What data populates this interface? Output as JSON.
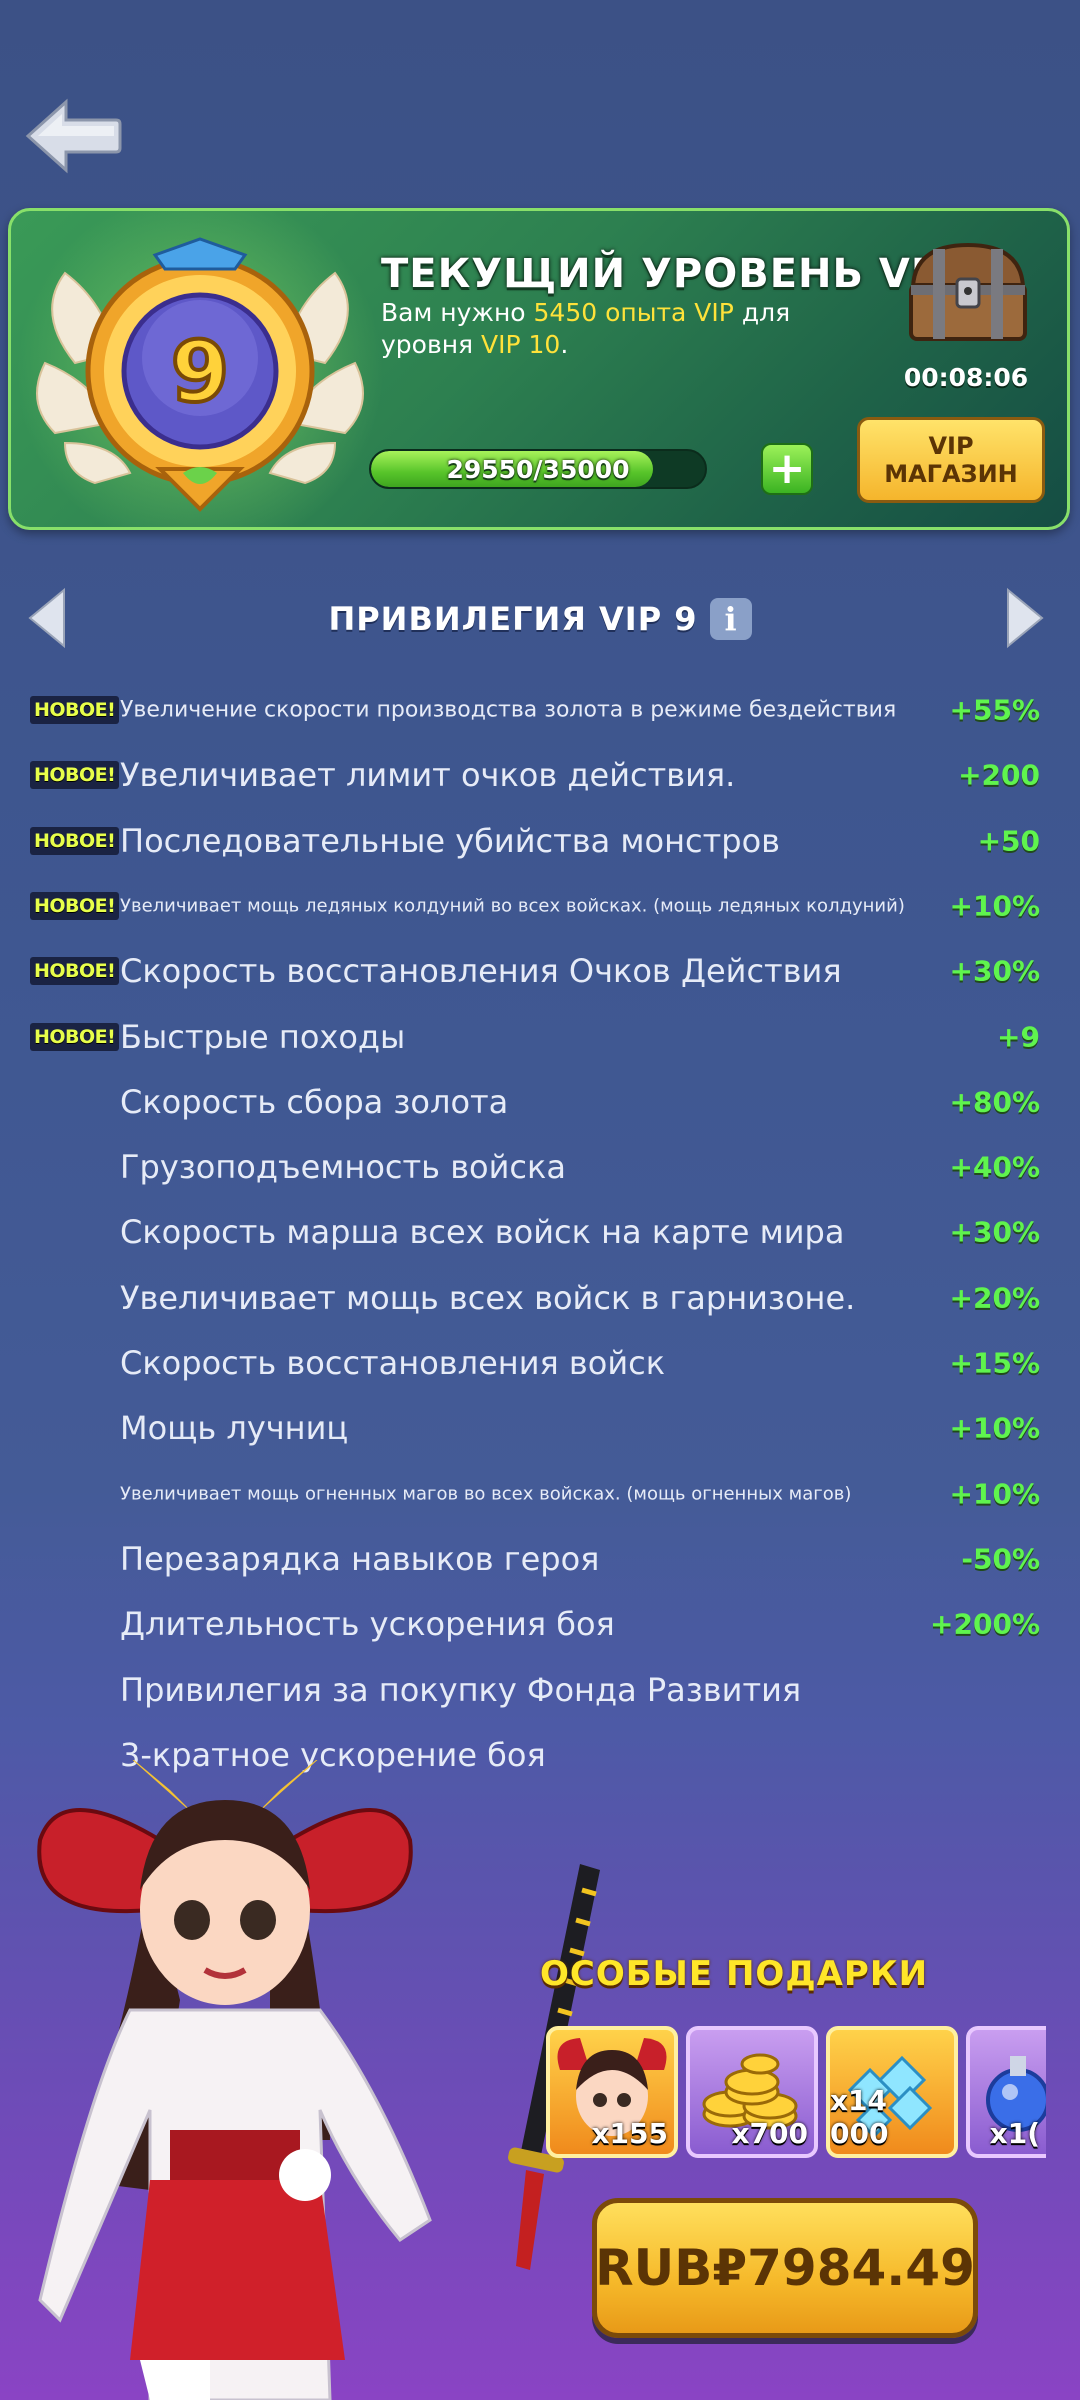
{
  "header": {
    "title_prefix": "ТЕКУЩИЙ УРОВЕНЬ VIP",
    "current_level": "9",
    "desc_part1": "Вам нужно ",
    "desc_xp": "5450 опыта VIP",
    "desc_part2": " для уровня ",
    "desc_next": "VIP 10",
    "desc_end": ".",
    "badge_level": "9",
    "xp_text": "29550/35000",
    "xp_fraction": 0.844,
    "chest_timer": "00:08:06",
    "shop_button": "VIP\nМАГАЗИН"
  },
  "privilege": {
    "title": "ПРИВИЛЕГИЯ VIP 9",
    "info_icon": "i",
    "new_badge": "НОВОЕ!",
    "items": [
      {
        "label": "Увеличение скорости производства золота в режиме бездействия",
        "value": "+55%",
        "is_new": true,
        "size": "m"
      },
      {
        "label": "Увеличивает лимит очков действия.",
        "value": "+200",
        "is_new": true,
        "size": "l"
      },
      {
        "label": "Последовательные убийства монстров",
        "value": "+50",
        "is_new": true,
        "size": "l"
      },
      {
        "label": "Увеличивает мощь ледяных колдуний во всех войсках. (мощь ледяных колдуний)",
        "value": "+10%",
        "is_new": true,
        "size": "s"
      },
      {
        "label": "Скорость восстановления Очков Действия",
        "value": "+30%",
        "is_new": true,
        "size": "l"
      },
      {
        "label": "Быстрые походы",
        "value": "+9",
        "is_new": true,
        "size": "l"
      },
      {
        "label": "Скорость сбора золота",
        "value": "+80%",
        "is_new": false,
        "size": "l"
      },
      {
        "label": "Грузоподъемность войска",
        "value": "+40%",
        "is_new": false,
        "size": "l"
      },
      {
        "label": "Скорость марша всех войск на карте мира",
        "value": "+30%",
        "is_new": false,
        "size": "l"
      },
      {
        "label": "Увеличивает мощь всех войск в гарнизоне.",
        "value": "+20%",
        "is_new": false,
        "size": "l"
      },
      {
        "label": "Скорость восстановления войск",
        "value": "+15%",
        "is_new": false,
        "size": "l"
      },
      {
        "label": "Мощь лучниц",
        "value": "+10%",
        "is_new": false,
        "size": "l"
      },
      {
        "label": "Увеличивает мощь огненных магов во всех войсках. (мощь огненных магов)",
        "value": "+10%",
        "is_new": false,
        "size": "s"
      },
      {
        "label": "Перезарядка навыков героя",
        "value": "-50%",
        "is_new": false,
        "size": "l"
      },
      {
        "label": "Длительность ускорения боя",
        "value": "+200%",
        "is_new": false,
        "size": "l"
      },
      {
        "label": "Привилегия за покупку Фонда Развития",
        "value": "",
        "is_new": false,
        "size": "l"
      },
      {
        "label": "3-кратное ускорение боя",
        "value": "",
        "is_new": false,
        "size": "l"
      }
    ]
  },
  "gifts": {
    "title": "ОСОБЫЕ ПОДАРКИ",
    "items": [
      {
        "icon": "hero-portrait-icon",
        "qty": "x155"
      },
      {
        "icon": "gold-coins-icon",
        "qty": "x700"
      },
      {
        "icon": "gems-icon",
        "qty": "x14 000"
      },
      {
        "icon": "potion-icon",
        "qty": "x1("
      }
    ]
  },
  "purchase": {
    "price": "RUB₽7984.49"
  }
}
